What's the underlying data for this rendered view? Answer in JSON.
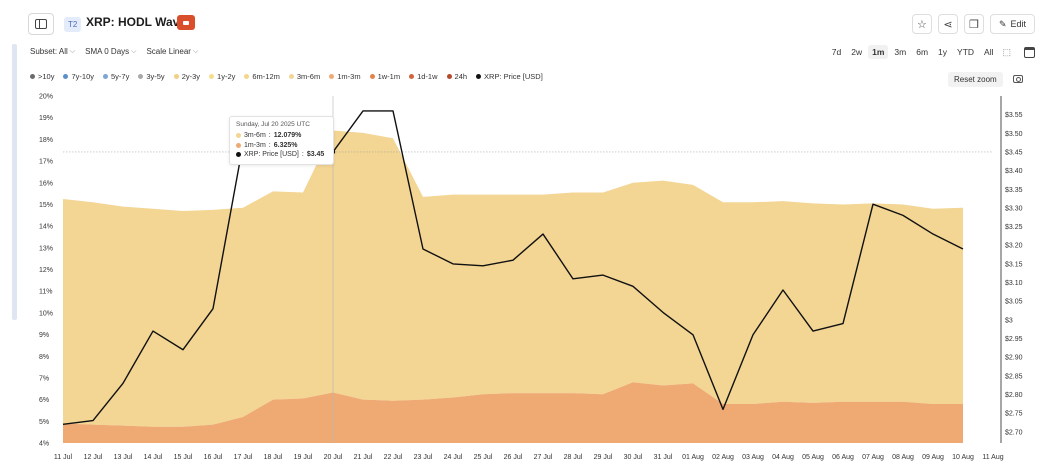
{
  "header": {
    "tier_badge": "T2",
    "title": "XRP: HODL Waves",
    "edit_label": "Edit"
  },
  "controls": {
    "subset": "Subset: All",
    "sma": "SMA 0 Days",
    "scale": "Scale Linear"
  },
  "ranges": [
    "7d",
    "2w",
    "1m",
    "3m",
    "6m",
    "1y",
    "YTD",
    "All"
  ],
  "active_range": "1m",
  "legend": [
    {
      "label": ">10y",
      "color": "#6b6b6b"
    },
    {
      "label": "7y-10y",
      "color": "#5b8fc9"
    },
    {
      "label": "5y-7y",
      "color": "#7ea5d4"
    },
    {
      "label": "3y-5y",
      "color": "#a9a9a9"
    },
    {
      "label": "2y-3y",
      "color": "#f2cf82"
    },
    {
      "label": "1y-2y",
      "color": "#f5dd8c"
    },
    {
      "label": "6m-12m",
      "color": "#f4d58a"
    },
    {
      "label": "3m-6m",
      "color": "#f3d594"
    },
    {
      "label": "1m-3m",
      "color": "#efaa74"
    },
    {
      "label": "1w-1m",
      "color": "#e3834a"
    },
    {
      "label": "1d-1w",
      "color": "#d2663a"
    },
    {
      "label": "24h",
      "color": "#b54a2a"
    },
    {
      "label": "XRP: Price [USD]",
      "color": "#111111"
    }
  ],
  "reset_zoom": "Reset zoom",
  "watermark": "glassnode",
  "tooltip": {
    "date": "Sunday, Jul 20 2025 UTC",
    "rows": [
      {
        "name": "3m-6m",
        "value": "12.079%",
        "color": "#f3d594"
      },
      {
        "name": "1m-3m",
        "value": "6.325%",
        "color": "#efaa74"
      },
      {
        "name": "XRP: Price [USD]",
        "value": "$3.45",
        "color": "#111111"
      }
    ]
  },
  "chart_data": {
    "type": "area",
    "x": [
      "11 Jul",
      "12 Jul",
      "13 Jul",
      "14 Jul",
      "15 Jul",
      "16 Jul",
      "17 Jul",
      "18 Jul",
      "19 Jul",
      "20 Jul",
      "21 Jul",
      "22 Jul",
      "23 Jul",
      "24 Jul",
      "25 Jul",
      "26 Jul",
      "27 Jul",
      "28 Jul",
      "29 Jul",
      "30 Jul",
      "31 Jul",
      "01 Aug",
      "02 Aug",
      "03 Aug",
      "04 Aug",
      "05 Aug",
      "06 Aug",
      "07 Aug",
      "08 Aug",
      "09 Aug",
      "10 Aug"
    ],
    "x_tick_labels": [
      "11 Jul",
      "12 Jul",
      "13 Jul",
      "14 Jul",
      "15 Jul",
      "16 Jul",
      "17 Jul",
      "18 Jul",
      "19 Jul",
      "20 Jul",
      "21 Jul",
      "22 Jul",
      "23 Jul",
      "24 Jul",
      "25 Jul",
      "26 Jul",
      "27 Jul",
      "28 Jul",
      "29 Jul",
      "30 Jul",
      "31 Jul",
      "01 Aug",
      "02 Aug",
      "03 Aug",
      "04 Aug",
      "05 Aug",
      "06 Aug",
      "07 Aug",
      "08 Aug",
      "09 Aug",
      "10 Aug",
      "11 Aug"
    ],
    "series": [
      {
        "name": "1m-3m",
        "color": "#efaa74",
        "values": [
          4.9,
          4.85,
          4.8,
          4.75,
          4.75,
          4.85,
          5.2,
          6.0,
          6.05,
          6.33,
          6.0,
          5.95,
          6.0,
          6.1,
          6.25,
          6.3,
          6.3,
          6.3,
          6.25,
          6.8,
          6.65,
          6.75,
          5.8,
          5.8,
          5.9,
          5.85,
          5.9,
          5.9,
          5.9,
          5.8,
          5.8
        ]
      },
      {
        "name": "3m-6m",
        "color": "#f3d594",
        "values": [
          10.35,
          10.25,
          10.1,
          10.05,
          9.95,
          9.9,
          9.65,
          9.6,
          9.5,
          12.08,
          12.3,
          12.1,
          9.35,
          9.35,
          9.2,
          9.15,
          9.15,
          9.25,
          9.3,
          9.2,
          9.45,
          9.15,
          9.3,
          9.3,
          9.25,
          9.2,
          9.1,
          9.15,
          9.1,
          9.0,
          9.05
        ]
      },
      {
        "name": "XRP: Price [USD]",
        "color": "#111111",
        "values": [
          2.72,
          2.73,
          2.83,
          2.97,
          2.92,
          3.03,
          3.47,
          3.42,
          3.44,
          3.45,
          3.56,
          3.56,
          3.19,
          3.15,
          3.145,
          3.16,
          3.23,
          3.11,
          3.12,
          3.09,
          3.02,
          2.96,
          2.76,
          2.96,
          3.08,
          2.97,
          2.99,
          3.31,
          3.28,
          3.23,
          3.19
        ]
      }
    ],
    "y_left": {
      "ticks": [
        "4%",
        "5%",
        "6%",
        "7%",
        "8%",
        "9%",
        "10%",
        "11%",
        "12%",
        "13%",
        "14%",
        "15%",
        "16%",
        "17%",
        "18%",
        "19%",
        "20%"
      ],
      "range": [
        4,
        20
      ]
    },
    "y_right": {
      "ticks": [
        "$2.70",
        "$2.75",
        "$2.80",
        "$2.85",
        "$2.90",
        "$2.95",
        "$3",
        "$3.05",
        "$3.10",
        "$3.15",
        "$3.20",
        "$3.25",
        "$3.30",
        "$3.35",
        "$3.40",
        "$3.45",
        "$3.50",
        "$3.55"
      ],
      "range": [
        2.67,
        3.6
      ]
    },
    "hover_x": "20 Jul",
    "grid": false
  }
}
